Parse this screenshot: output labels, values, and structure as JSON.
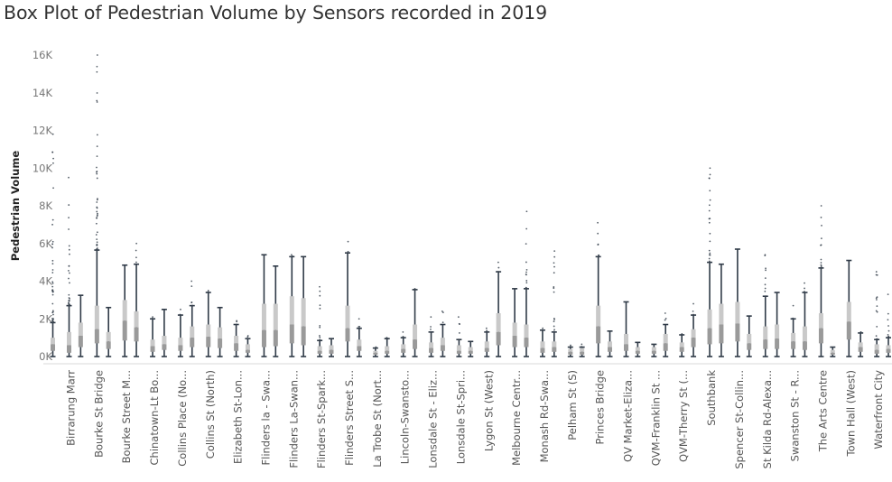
{
  "chart_data": {
    "type": "box",
    "title": "Box Plot of Pedestrian Volume by Sensors recorded in 2019",
    "xlabel": "",
    "ylabel": "Pedestrian Volume",
    "ylim": [
      0,
      17000
    ],
    "yticks": [
      {
        "value": 0,
        "label": "0K"
      },
      {
        "value": 2000,
        "label": "2K"
      },
      {
        "value": 4000,
        "label": "4K"
      },
      {
        "value": 6000,
        "label": "6K"
      },
      {
        "value": 8000,
        "label": "8K"
      },
      {
        "value": 10000,
        "label": "10K"
      },
      {
        "value": 12000,
        "label": "12K"
      },
      {
        "value": 14000,
        "label": "14K"
      },
      {
        "value": 16000,
        "label": "16K"
      }
    ],
    "grid": false,
    "colors": {
      "box_upper": "#c9c9c9",
      "box_lower": "#9a9a9a",
      "whisker": "#2f3a47",
      "outlier": "#3a4450"
    },
    "categories": [
      "Birrarung Marr",
      "Bourke St Bridge",
      "Bourke Street M...",
      "Chinatown-Lt Bo...",
      "Collins Place (No...",
      "Collins St (North)",
      "Elizabeth St-Lon...",
      "Flinders la - Swa...",
      "Flinders La-Swan...",
      "Flinders St-Spark...",
      "Flinders Street S...",
      "La Trobe St (Nort...",
      "Lincoln-Swansto...",
      "Lonsdale St - Eliz...",
      "Lonsdale St-Spri...",
      "Lygon St (West)",
      "Melbourne Centr...",
      "Monash Rd-Swa...",
      "Pelham St (S)",
      "Princes Bridge",
      "QV Market-Eliza...",
      "QVM-Franklin St ...",
      "QVM-Therry St (...",
      "Southbank",
      "Spencer St-Collin...",
      "St Kilda Rd-Alexa...",
      "Swanston St - R...",
      "The Arts Centre",
      "Town Hall (West)",
      "Waterfront City"
    ],
    "series": [
      {
        "stats": [
          {
            "min": 0,
            "q1": 300,
            "median": 650,
            "q3": 1000,
            "max": 1800,
            "outlier_max": 11800
          },
          {
            "min": 0,
            "q1": 200,
            "median": 600,
            "q3": 1300,
            "max": 2700,
            "outlier_max": 9500
          },
          {
            "min": 0,
            "q1": 500,
            "median": 1100,
            "q3": 1800,
            "max": 3250,
            "outlier_max": 3250
          },
          {
            "min": 0,
            "q1": 700,
            "median": 1450,
            "q3": 2700,
            "max": 5650,
            "outlier_max": 16000
          },
          {
            "min": 0,
            "q1": 400,
            "median": 800,
            "q3": 1300,
            "max": 2600,
            "outlier_max": 2600
          },
          {
            "min": 0,
            "q1": 850,
            "median": 1900,
            "q3": 3000,
            "max": 4850,
            "outlier_max": 4850
          },
          {
            "min": 0,
            "q1": 800,
            "median": 1550,
            "q3": 2400,
            "max": 4900,
            "outlier_max": 6000
          },
          {
            "min": 0,
            "q1": 250,
            "median": 550,
            "q3": 900,
            "max": 2000,
            "outlier_max": 2100
          },
          {
            "min": 0,
            "q1": 350,
            "median": 650,
            "q3": 1100,
            "max": 2500,
            "outlier_max": 2500
          },
          {
            "min": 0,
            "q1": 300,
            "median": 600,
            "q3": 1000,
            "max": 2200,
            "outlier_max": 2500
          },
          {
            "min": 0,
            "q1": 500,
            "median": 1000,
            "q3": 1600,
            "max": 2700,
            "outlier_max": 4000
          },
          {
            "min": 0,
            "q1": 500,
            "median": 1050,
            "q3": 1700,
            "max": 3400,
            "outlier_max": 3500
          },
          {
            "min": 0,
            "q1": 450,
            "median": 950,
            "q3": 1550,
            "max": 2600,
            "outlier_max": 2600
          },
          {
            "min": 0,
            "q1": 300,
            "median": 700,
            "q3": 1100,
            "max": 1700,
            "outlier_max": 1900
          },
          {
            "min": 0,
            "q1": 200,
            "median": 350,
            "q3": 650,
            "max": 950,
            "outlier_max": 1100
          },
          {
            "min": 0,
            "q1": 500,
            "median": 1400,
            "q3": 2800,
            "max": 5400,
            "outlier_max": 5400
          },
          {
            "min": 0,
            "q1": 550,
            "median": 1400,
            "q3": 2800,
            "max": 4800,
            "outlier_max": 4800
          },
          {
            "min": 0,
            "q1": 700,
            "median": 1700,
            "q3": 3200,
            "max": 5300,
            "outlier_max": 5400
          },
          {
            "min": 0,
            "q1": 600,
            "median": 1600,
            "q3": 3100,
            "max": 5300,
            "outlier_max": 5300
          },
          {
            "min": 0,
            "q1": 150,
            "median": 300,
            "q3": 550,
            "max": 850,
            "outlier_max": 3700
          },
          {
            "min": 0,
            "q1": 150,
            "median": 350,
            "q3": 600,
            "max": 950,
            "outlier_max": 950
          },
          {
            "min": 0,
            "q1": 800,
            "median": 1500,
            "q3": 2700,
            "max": 5500,
            "outlier_max": 6100
          },
          {
            "min": 0,
            "q1": 300,
            "median": 550,
            "q3": 900,
            "max": 1500,
            "outlier_max": 2000
          },
          {
            "min": 0,
            "q1": 100,
            "median": 200,
            "q3": 300,
            "max": 450,
            "outlier_max": 500
          },
          {
            "min": 0,
            "q1": 150,
            "median": 300,
            "q3": 550,
            "max": 950,
            "outlier_max": 1000
          },
          {
            "min": 0,
            "q1": 200,
            "median": 400,
            "q3": 650,
            "max": 1000,
            "outlier_max": 1300
          },
          {
            "min": 0,
            "q1": 400,
            "median": 900,
            "q3": 1700,
            "max": 3550,
            "outlier_max": 3600
          },
          {
            "min": 0,
            "q1": 200,
            "median": 450,
            "q3": 750,
            "max": 1300,
            "outlier_max": 2100
          },
          {
            "min": 0,
            "q1": 300,
            "median": 600,
            "q3": 1000,
            "max": 1700,
            "outlier_max": 2400
          },
          {
            "min": 0,
            "q1": 150,
            "median": 300,
            "q3": 600,
            "max": 900,
            "outlier_max": 2100
          },
          {
            "min": 0,
            "q1": 150,
            "median": 300,
            "q3": 500,
            "max": 800,
            "outlier_max": 800
          },
          {
            "min": 0,
            "q1": 250,
            "median": 450,
            "q3": 800,
            "max": 1300,
            "outlier_max": 1500
          },
          {
            "min": 0,
            "q1": 600,
            "median": 1300,
            "q3": 2300,
            "max": 4500,
            "outlier_max": 5000
          },
          {
            "min": 0,
            "q1": 500,
            "median": 1100,
            "q3": 1800,
            "max": 3600,
            "outlier_max": 3600
          },
          {
            "min": 0,
            "q1": 500,
            "median": 1000,
            "q3": 1700,
            "max": 3600,
            "outlier_max": 7700
          },
          {
            "min": 0,
            "q1": 200,
            "median": 450,
            "q3": 800,
            "max": 1400,
            "outlier_max": 1500
          },
          {
            "min": 0,
            "q1": 250,
            "median": 500,
            "q3": 800,
            "max": 1300,
            "outlier_max": 5600
          },
          {
            "min": 0,
            "q1": 100,
            "median": 250,
            "q3": 400,
            "max": 500,
            "outlier_max": 600
          },
          {
            "min": 0,
            "q1": 100,
            "median": 250,
            "q3": 450,
            "max": 500,
            "outlier_max": 650
          },
          {
            "min": 0,
            "q1": 700,
            "median": 1600,
            "q3": 2700,
            "max": 5300,
            "outlier_max": 7100
          },
          {
            "min": 0,
            "q1": 250,
            "median": 500,
            "q3": 800,
            "max": 1350,
            "outlier_max": 1350
          },
          {
            "min": 0,
            "q1": 300,
            "median": 650,
            "q3": 1200,
            "max": 2900,
            "outlier_max": 2900
          },
          {
            "min": 0,
            "q1": 150,
            "median": 300,
            "q3": 500,
            "max": 750,
            "outlier_max": 750
          },
          {
            "min": 0,
            "q1": 150,
            "median": 300,
            "q3": 500,
            "max": 650,
            "outlier_max": 650
          },
          {
            "min": 0,
            "q1": 300,
            "median": 700,
            "q3": 1200,
            "max": 1700,
            "outlier_max": 2300
          },
          {
            "min": 0,
            "q1": 250,
            "median": 500,
            "q3": 750,
            "max": 1150,
            "outlier_max": 1200
          },
          {
            "min": 0,
            "q1": 500,
            "median": 1000,
            "q3": 1450,
            "max": 2200,
            "outlier_max": 2800
          },
          {
            "min": 0,
            "q1": 650,
            "median": 1500,
            "q3": 2500,
            "max": 5000,
            "outlier_max": 10000
          },
          {
            "min": 0,
            "q1": 700,
            "median": 1700,
            "q3": 2800,
            "max": 4900,
            "outlier_max": 4900
          },
          {
            "min": 0,
            "q1": 800,
            "median": 1750,
            "q3": 2900,
            "max": 5700,
            "outlier_max": 5700
          },
          {
            "min": 0,
            "q1": 350,
            "median": 700,
            "q3": 1200,
            "max": 2150,
            "outlier_max": 2150
          },
          {
            "min": 0,
            "q1": 400,
            "median": 900,
            "q3": 1600,
            "max": 3200,
            "outlier_max": 5400
          },
          {
            "min": 0,
            "q1": 400,
            "median": 950,
            "q3": 1700,
            "max": 3400,
            "outlier_max": 3400
          },
          {
            "min": 0,
            "q1": 400,
            "median": 800,
            "q3": 1250,
            "max": 2000,
            "outlier_max": 2700
          },
          {
            "min": 0,
            "q1": 350,
            "median": 800,
            "q3": 1600,
            "max": 3400,
            "outlier_max": 3900
          },
          {
            "min": 0,
            "q1": 700,
            "median": 1500,
            "q3": 2300,
            "max": 4700,
            "outlier_max": 8000
          },
          {
            "min": 0,
            "q1": 100,
            "median": 200,
            "q3": 350,
            "max": 500,
            "outlier_max": 500
          },
          {
            "min": 0,
            "q1": 900,
            "median": 1850,
            "q3": 2900,
            "max": 5100,
            "outlier_max": 5100
          },
          {
            "min": 0,
            "q1": 250,
            "median": 500,
            "q3": 750,
            "max": 1250,
            "outlier_max": 1300
          },
          {
            "min": 0,
            "q1": 150,
            "median": 350,
            "q3": 650,
            "max": 900,
            "outlier_max": 4500
          },
          {
            "min": 0,
            "q1": 200,
            "median": 400,
            "q3": 600,
            "max": 1000,
            "outlier_max": 3300
          }
        ]
      }
    ]
  }
}
